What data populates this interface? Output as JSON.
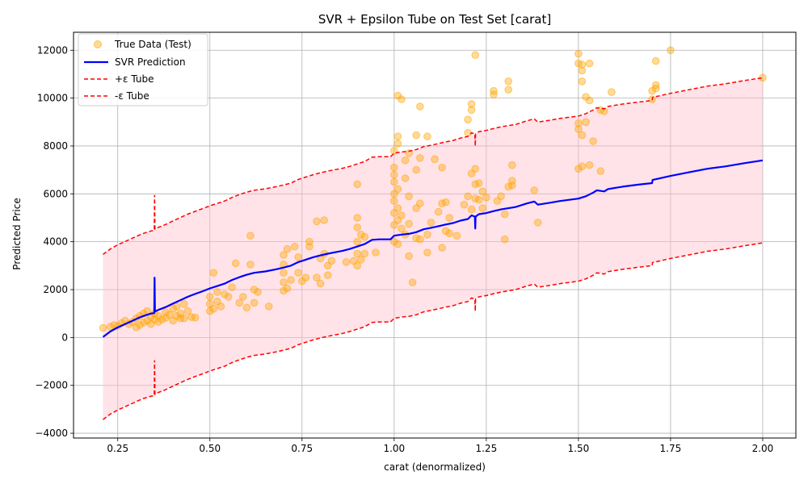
{
  "chart_data": {
    "type": "scatter",
    "title": "SVR + Epsilon Tube on Test Set [carat]",
    "xlabel": "carat (denormalized)",
    "ylabel": "Predicted Price",
    "xlim": [
      0.13,
      2.09
    ],
    "ylim": [
      -4200,
      12750
    ],
    "xticks": [
      0.25,
      0.5,
      0.75,
      1.0,
      1.25,
      1.5,
      1.75,
      2.0
    ],
    "xtick_labels": [
      "0.25",
      "0.50",
      "0.75",
      "1.00",
      "1.25",
      "1.50",
      "1.75",
      "2.00"
    ],
    "yticks": [
      -4000,
      -2000,
      0,
      2000,
      4000,
      6000,
      8000,
      10000,
      12000
    ],
    "ytick_labels": [
      "−4000",
      "−2000",
      "0",
      "2000",
      "4000",
      "6000",
      "8000",
      "10000",
      "12000"
    ],
    "grid": true,
    "legend_position": "top-left",
    "epsilon": 3450,
    "colors": {
      "scatter": "#ffa500",
      "prediction": "#0000ff",
      "tube_line": "#ff0000",
      "tube_fill": "#ffc0cb"
    },
    "series": [
      {
        "name": "True Data (Test)",
        "kind": "scatter",
        "points": [
          [
            0.21,
            400
          ],
          [
            0.23,
            450
          ],
          [
            0.24,
            520
          ],
          [
            0.25,
            480
          ],
          [
            0.26,
            600
          ],
          [
            0.27,
            700
          ],
          [
            0.28,
            560
          ],
          [
            0.29,
            650
          ],
          [
            0.3,
            430
          ],
          [
            0.3,
            800
          ],
          [
            0.31,
            520
          ],
          [
            0.31,
            900
          ],
          [
            0.32,
            620
          ],
          [
            0.32,
            1000
          ],
          [
            0.33,
            700
          ],
          [
            0.33,
            1100
          ],
          [
            0.34,
            560
          ],
          [
            0.34,
            850
          ],
          [
            0.35,
            750
          ],
          [
            0.35,
            1000
          ],
          [
            0.36,
            650
          ],
          [
            0.36,
            900
          ],
          [
            0.37,
            750
          ],
          [
            0.38,
            1050
          ],
          [
            0.38,
            820
          ],
          [
            0.39,
            950
          ],
          [
            0.4,
            700
          ],
          [
            0.4,
            1200
          ],
          [
            0.41,
            900
          ],
          [
            0.41,
            1300
          ],
          [
            0.42,
            800
          ],
          [
            0.42,
            1000
          ],
          [
            0.43,
            1400
          ],
          [
            0.43,
            800
          ],
          [
            0.44,
            1100
          ],
          [
            0.45,
            850
          ],
          [
            0.46,
            830
          ],
          [
            0.5,
            1100
          ],
          [
            0.5,
            1400
          ],
          [
            0.5,
            1700
          ],
          [
            0.51,
            1200
          ],
          [
            0.51,
            2700
          ],
          [
            0.52,
            1500
          ],
          [
            0.52,
            1900
          ],
          [
            0.53,
            1300
          ],
          [
            0.54,
            1800
          ],
          [
            0.55,
            1700
          ],
          [
            0.56,
            2100
          ],
          [
            0.57,
            3100
          ],
          [
            0.58,
            1450
          ],
          [
            0.59,
            1700
          ],
          [
            0.6,
            1250
          ],
          [
            0.61,
            3050
          ],
          [
            0.61,
            4250
          ],
          [
            0.62,
            1450
          ],
          [
            0.62,
            2000
          ],
          [
            0.63,
            1900
          ],
          [
            0.66,
            1300
          ],
          [
            0.7,
            1950
          ],
          [
            0.7,
            2300
          ],
          [
            0.7,
            2700
          ],
          [
            0.7,
            3050
          ],
          [
            0.7,
            3450
          ],
          [
            0.71,
            2050
          ],
          [
            0.71,
            3700
          ],
          [
            0.72,
            2400
          ],
          [
            0.73,
            3800
          ],
          [
            0.74,
            2700
          ],
          [
            0.74,
            3350
          ],
          [
            0.75,
            2350
          ],
          [
            0.76,
            2500
          ],
          [
            0.77,
            3800
          ],
          [
            0.77,
            4000
          ],
          [
            0.79,
            2500
          ],
          [
            0.79,
            4850
          ],
          [
            0.8,
            2250
          ],
          [
            0.8,
            3300
          ],
          [
            0.81,
            3500
          ],
          [
            0.81,
            4900
          ],
          [
            0.82,
            2600
          ],
          [
            0.82,
            3000
          ],
          [
            0.83,
            3200
          ],
          [
            0.87,
            3150
          ],
          [
            0.89,
            3200
          ],
          [
            0.9,
            3000
          ],
          [
            0.9,
            3500
          ],
          [
            0.9,
            4000
          ],
          [
            0.9,
            4600
          ],
          [
            0.9,
            5000
          ],
          [
            0.9,
            6400
          ],
          [
            0.91,
            3250
          ],
          [
            0.91,
            4300
          ],
          [
            0.92,
            3500
          ],
          [
            0.92,
            4200
          ],
          [
            0.95,
            3550
          ],
          [
            1.0,
            4000
          ],
          [
            1.0,
            4700
          ],
          [
            1.0,
            5200
          ],
          [
            1.0,
            5700
          ],
          [
            1.0,
            6000
          ],
          [
            1.0,
            6500
          ],
          [
            1.0,
            6800
          ],
          [
            1.0,
            7100
          ],
          [
            1.0,
            7800
          ],
          [
            1.01,
            3900
          ],
          [
            1.01,
            4900
          ],
          [
            1.01,
            5400
          ],
          [
            1.01,
            6200
          ],
          [
            1.01,
            8100
          ],
          [
            1.01,
            8400
          ],
          [
            1.01,
            10100
          ],
          [
            1.02,
            4550
          ],
          [
            1.02,
            5100
          ],
          [
            1.02,
            9950
          ],
          [
            1.03,
            4300
          ],
          [
            1.03,
            6650
          ],
          [
            1.03,
            7400
          ],
          [
            1.04,
            3400
          ],
          [
            1.04,
            4750
          ],
          [
            1.04,
            5900
          ],
          [
            1.04,
            7700
          ],
          [
            1.05,
            2300
          ],
          [
            1.06,
            4150
          ],
          [
            1.06,
            5400
          ],
          [
            1.06,
            7000
          ],
          [
            1.06,
            8450
          ],
          [
            1.07,
            4100
          ],
          [
            1.07,
            5600
          ],
          [
            1.07,
            7500
          ],
          [
            1.07,
            9650
          ],
          [
            1.09,
            3550
          ],
          [
            1.09,
            4300
          ],
          [
            1.09,
            8400
          ],
          [
            1.1,
            4800
          ],
          [
            1.11,
            7450
          ],
          [
            1.12,
            5250
          ],
          [
            1.13,
            3750
          ],
          [
            1.13,
            5600
          ],
          [
            1.13,
            7100
          ],
          [
            1.14,
            4450
          ],
          [
            1.14,
            5650
          ],
          [
            1.15,
            4350
          ],
          [
            1.15,
            5000
          ],
          [
            1.17,
            4250
          ],
          [
            1.19,
            5550
          ],
          [
            1.2,
            5900
          ],
          [
            1.2,
            8550
          ],
          [
            1.2,
            9100
          ],
          [
            1.21,
            5350
          ],
          [
            1.21,
            6850
          ],
          [
            1.21,
            9500
          ],
          [
            1.21,
            9750
          ],
          [
            1.22,
            5800
          ],
          [
            1.22,
            6400
          ],
          [
            1.22,
            7050
          ],
          [
            1.22,
            11800
          ],
          [
            1.23,
            5750
          ],
          [
            1.23,
            6450
          ],
          [
            1.24,
            5400
          ],
          [
            1.24,
            6100
          ],
          [
            1.25,
            5850
          ],
          [
            1.27,
            10150
          ],
          [
            1.27,
            10300
          ],
          [
            1.28,
            5700
          ],
          [
            1.29,
            5900
          ],
          [
            1.3,
            4100
          ],
          [
            1.3,
            5150
          ],
          [
            1.31,
            6300
          ],
          [
            1.31,
            10350
          ],
          [
            1.31,
            10700
          ],
          [
            1.32,
            6350
          ],
          [
            1.32,
            6550
          ],
          [
            1.32,
            7200
          ],
          [
            1.38,
            6150
          ],
          [
            1.39,
            4800
          ],
          [
            1.5,
            7050
          ],
          [
            1.5,
            8700
          ],
          [
            1.5,
            8950
          ],
          [
            1.5,
            11450
          ],
          [
            1.5,
            11850
          ],
          [
            1.51,
            7150
          ],
          [
            1.51,
            8450
          ],
          [
            1.51,
            10700
          ],
          [
            1.51,
            11150
          ],
          [
            1.51,
            11400
          ],
          [
            1.52,
            9000
          ],
          [
            1.52,
            10050
          ],
          [
            1.53,
            7200
          ],
          [
            1.53,
            9900
          ],
          [
            1.53,
            11450
          ],
          [
            1.54,
            8200
          ],
          [
            1.56,
            6950
          ],
          [
            1.56,
            9500
          ],
          [
            1.57,
            9450
          ],
          [
            1.59,
            10250
          ],
          [
            1.7,
            10300
          ],
          [
            1.7,
            9950
          ],
          [
            1.71,
            10400
          ],
          [
            1.71,
            10550
          ],
          [
            1.71,
            11550
          ],
          [
            1.75,
            12000
          ],
          [
            2.0,
            10850
          ]
        ]
      },
      {
        "name": "SVR Prediction",
        "kind": "line",
        "points": [
          [
            0.21,
            20
          ],
          [
            0.23,
            250
          ],
          [
            0.25,
            420
          ],
          [
            0.27,
            560
          ],
          [
            0.29,
            700
          ],
          [
            0.3,
            770
          ],
          [
            0.31,
            840
          ],
          [
            0.32,
            900
          ],
          [
            0.33,
            950
          ],
          [
            0.34,
            1000
          ],
          [
            0.349,
            1020
          ],
          [
            0.35,
            2500
          ],
          [
            0.351,
            1080
          ],
          [
            0.36,
            1150
          ],
          [
            0.38,
            1270
          ],
          [
            0.4,
            1420
          ],
          [
            0.42,
            1560
          ],
          [
            0.44,
            1700
          ],
          [
            0.46,
            1820
          ],
          [
            0.48,
            1930
          ],
          [
            0.5,
            2050
          ],
          [
            0.52,
            2150
          ],
          [
            0.54,
            2250
          ],
          [
            0.56,
            2400
          ],
          [
            0.58,
            2520
          ],
          [
            0.6,
            2620
          ],
          [
            0.62,
            2700
          ],
          [
            0.65,
            2760
          ],
          [
            0.68,
            2850
          ],
          [
            0.7,
            2920
          ],
          [
            0.72,
            3000
          ],
          [
            0.74,
            3150
          ],
          [
            0.76,
            3250
          ],
          [
            0.78,
            3350
          ],
          [
            0.8,
            3430
          ],
          [
            0.82,
            3500
          ],
          [
            0.84,
            3560
          ],
          [
            0.86,
            3620
          ],
          [
            0.88,
            3700
          ],
          [
            0.9,
            3800
          ],
          [
            0.92,
            3900
          ],
          [
            0.94,
            4080
          ],
          [
            0.96,
            4100
          ],
          [
            0.99,
            4100
          ],
          [
            1.0,
            4250
          ],
          [
            1.02,
            4300
          ],
          [
            1.04,
            4330
          ],
          [
            1.06,
            4400
          ],
          [
            1.08,
            4520
          ],
          [
            1.1,
            4580
          ],
          [
            1.12,
            4650
          ],
          [
            1.14,
            4720
          ],
          [
            1.16,
            4780
          ],
          [
            1.18,
            4880
          ],
          [
            1.2,
            4950
          ],
          [
            1.21,
            5100
          ],
          [
            1.219,
            5050
          ],
          [
            1.22,
            4550
          ],
          [
            1.221,
            5050
          ],
          [
            1.23,
            5150
          ],
          [
            1.25,
            5200
          ],
          [
            1.27,
            5280
          ],
          [
            1.29,
            5350
          ],
          [
            1.31,
            5400
          ],
          [
            1.33,
            5450
          ],
          [
            1.36,
            5600
          ],
          [
            1.38,
            5680
          ],
          [
            1.39,
            5550
          ],
          [
            1.42,
            5620
          ],
          [
            1.45,
            5700
          ],
          [
            1.5,
            5800
          ],
          [
            1.52,
            5900
          ],
          [
            1.54,
            6050
          ],
          [
            1.55,
            6150
          ],
          [
            1.57,
            6100
          ],
          [
            1.58,
            6200
          ],
          [
            1.62,
            6300
          ],
          [
            1.66,
            6380
          ],
          [
            1.7,
            6450
          ],
          [
            1.701,
            6580
          ],
          [
            1.75,
            6750
          ],
          [
            1.8,
            6900
          ],
          [
            1.85,
            7050
          ],
          [
            1.9,
            7150
          ],
          [
            1.95,
            7280
          ],
          [
            2.0,
            7400
          ]
        ]
      },
      {
        "name": "+ε Tube",
        "kind": "dashed-line"
      },
      {
        "name": "-ε Tube",
        "kind": "dashed-line"
      }
    ]
  }
}
